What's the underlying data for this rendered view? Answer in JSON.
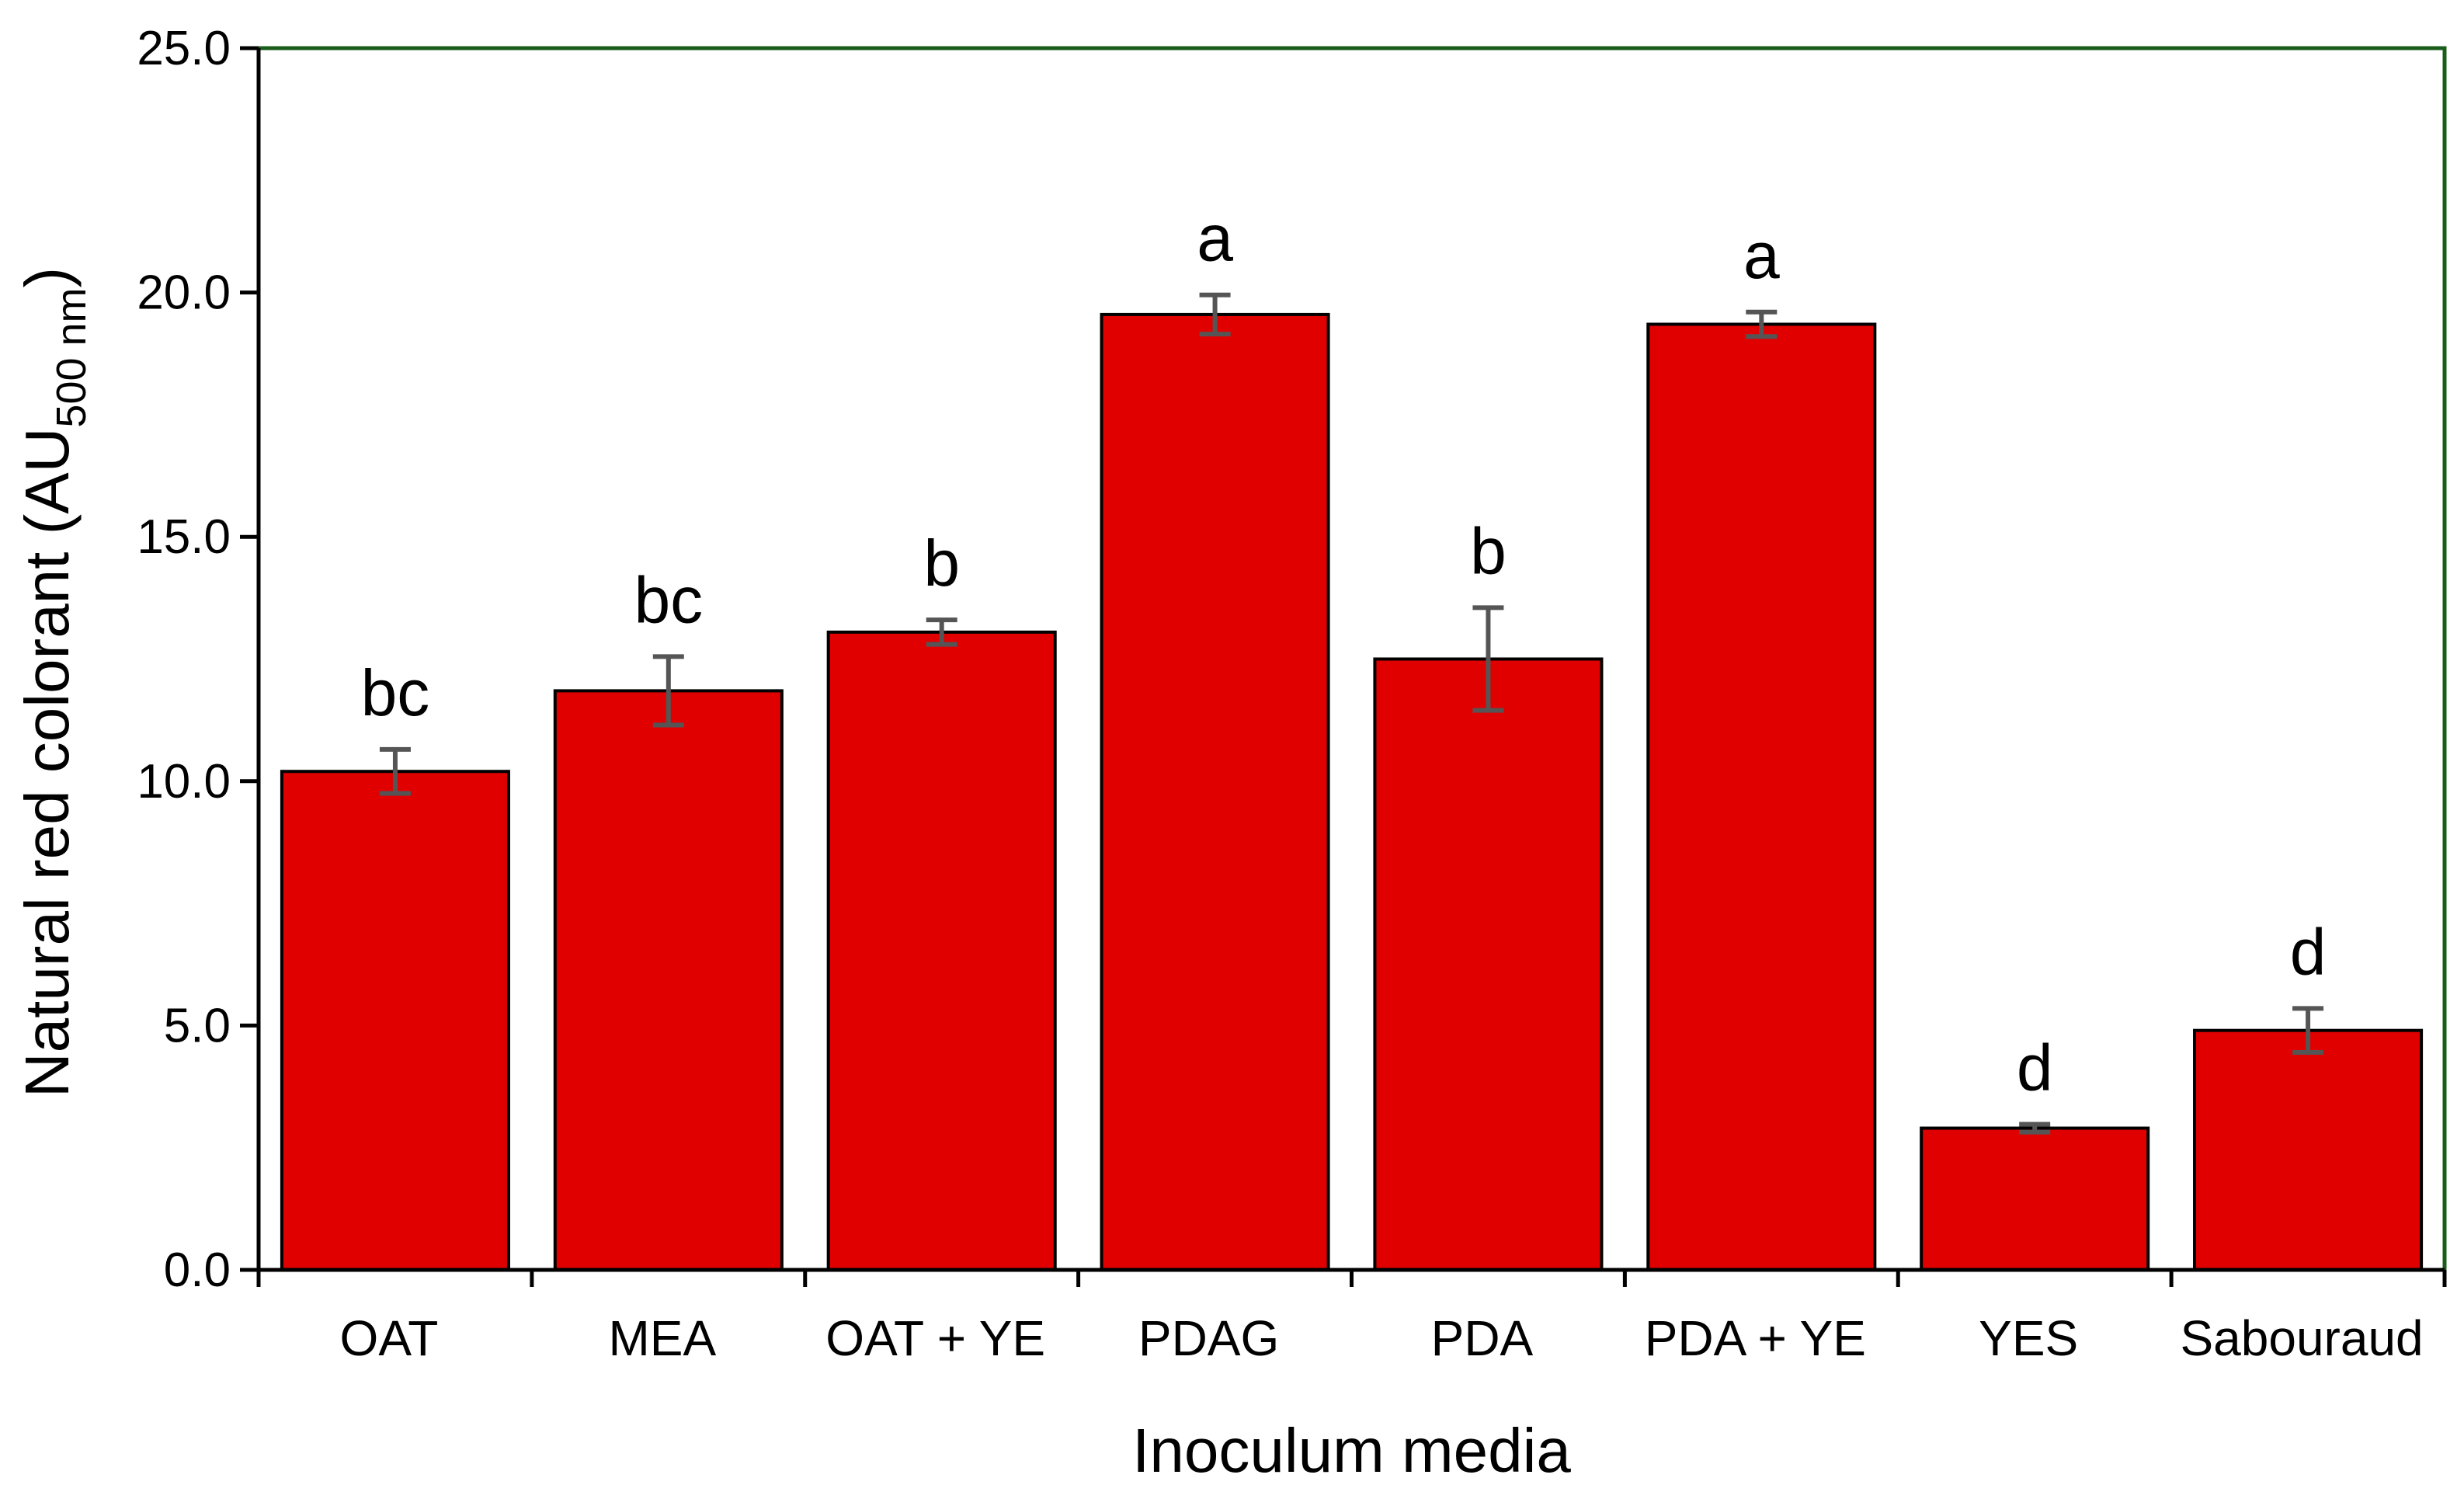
{
  "chart_data": {
    "type": "bar",
    "title": "",
    "xlabel": "Inoculum media",
    "ylabel": {
      "main": "Natural red colorant (AU",
      "subscript": "500 nm",
      "close": ")"
    },
    "ylim": [
      0,
      25
    ],
    "yticks": [
      "0.0",
      "5.0",
      "10.0",
      "15.0",
      "20.0",
      "25.0"
    ],
    "grid": false,
    "legend": "none",
    "categories": [
      "OAT",
      "MEA",
      "OAT + YE",
      "PDAG",
      "PDA",
      "PDA + YE",
      "YES",
      "Sabouraud"
    ],
    "values": [
      10.2,
      11.85,
      13.05,
      19.55,
      12.5,
      19.35,
      2.9,
      4.9
    ],
    "errors": [
      0.45,
      0.7,
      0.25,
      0.4,
      1.05,
      0.25,
      0.08,
      0.45
    ],
    "significance": [
      "bc",
      "bc",
      "b",
      "a",
      "b",
      "a",
      "d",
      "d"
    ],
    "colors": {
      "bar": "#e00000",
      "bar_edge": "#000000",
      "error_bar": "#555555",
      "frame": "#1a5c1a"
    }
  }
}
